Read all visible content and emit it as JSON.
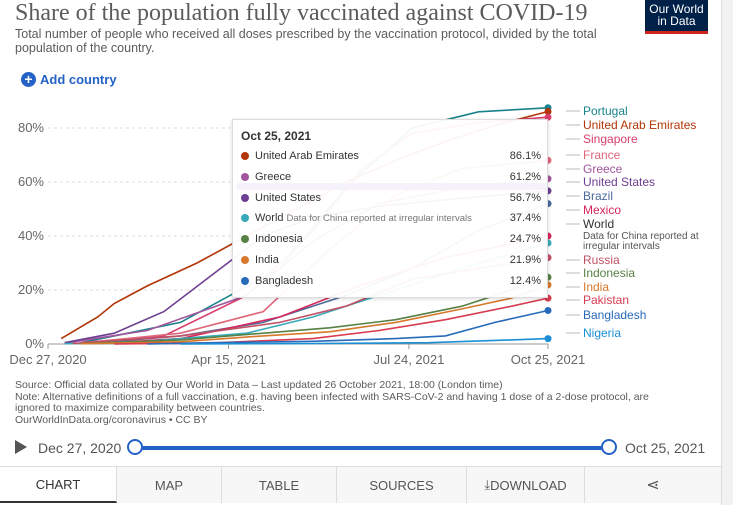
{
  "header": {
    "title": "Share of the population fully vaccinated against COVID-19",
    "subtitle": "Total number of people who received all doses prescribed by the vaccination protocol, divided by the total population of the country.",
    "logo_line1": "Our World",
    "logo_line2": "in Data"
  },
  "add_country": {
    "icon": "plus-icon",
    "label": "Add country"
  },
  "chart_data": {
    "type": "line",
    "title": "Share of the population fully vaccinated against COVID-19",
    "ylabel": "%",
    "ylim": [
      0,
      85
    ],
    "yticks": [
      "0%",
      "20%",
      "40%",
      "60%",
      "80%"
    ],
    "xticks": [
      "Dec 27, 2020",
      "Apr 15, 2021",
      "Jul 24, 2021",
      "Oct 25, 2021"
    ],
    "x_range_days": [
      0,
      302
    ],
    "series": [
      {
        "name": "Portugal",
        "color": "#18838a",
        "points": [
          [
            20,
            0.5
          ],
          [
            80,
            8
          ],
          [
            140,
            28
          ],
          [
            180,
            58
          ],
          [
            220,
            80
          ],
          [
            260,
            86
          ],
          [
            302,
            87.5
          ]
        ]
      },
      {
        "name": "United Arab Emirates",
        "color": "#b13507",
        "points": [
          [
            8,
            2
          ],
          [
            30,
            10
          ],
          [
            40,
            15
          ],
          [
            60,
            21.5
          ],
          [
            90,
            30
          ],
          [
            120,
            40
          ],
          [
            150,
            50
          ],
          [
            180,
            60
          ],
          [
            210,
            68
          ],
          [
            240,
            75
          ],
          [
            270,
            81
          ],
          [
            302,
            86.1
          ]
        ]
      },
      {
        "name": "Singapore",
        "color": "#d83e6c",
        "points": [
          [
            20,
            0.5
          ],
          [
            70,
            3
          ],
          [
            120,
            18
          ],
          [
            160,
            42
          ],
          [
            190,
            65
          ],
          [
            220,
            78
          ],
          [
            260,
            82
          ],
          [
            302,
            84
          ]
        ]
      },
      {
        "name": "France",
        "color": "#e0677a",
        "points": [
          [
            20,
            0.3
          ],
          [
            80,
            4
          ],
          [
            130,
            12
          ],
          [
            170,
            35
          ],
          [
            210,
            55
          ],
          [
            250,
            65
          ],
          [
            302,
            68
          ]
        ]
      },
      {
        "name": "Greece",
        "color": "#a2559c",
        "points": [
          [
            10,
            0.3
          ],
          [
            60,
            5
          ],
          [
            120,
            18
          ],
          [
            160,
            38
          ],
          [
            200,
            52
          ],
          [
            250,
            58
          ],
          [
            302,
            61.2
          ]
        ]
      },
      {
        "name": "United States",
        "color": "#6d3e91",
        "points": [
          [
            10,
            0.5
          ],
          [
            40,
            4
          ],
          [
            70,
            12
          ],
          [
            100,
            26
          ],
          [
            130,
            40
          ],
          [
            160,
            47
          ],
          [
            200,
            51
          ],
          [
            250,
            54
          ],
          [
            302,
            56.7
          ]
        ]
      },
      {
        "name": "Brazil",
        "color": "#4c6a9c",
        "points": [
          [
            25,
            0.2
          ],
          [
            80,
            3
          ],
          [
            130,
            8
          ],
          [
            180,
            18
          ],
          [
            220,
            28
          ],
          [
            260,
            42
          ],
          [
            302,
            52
          ]
        ]
      },
      {
        "name": "Mexico",
        "color": "#d7265a",
        "points": [
          [
            30,
            0.2
          ],
          [
            80,
            2
          ],
          [
            140,
            10
          ],
          [
            190,
            22
          ],
          [
            240,
            32
          ],
          [
            302,
            40
          ]
        ]
      },
      {
        "name": "World",
        "color": "#38aaba",
        "points": [
          [
            10,
            0.1
          ],
          [
            60,
            1
          ],
          [
            120,
            4
          ],
          [
            160,
            10
          ],
          [
            200,
            18
          ],
          [
            250,
            28
          ],
          [
            302,
            37.4
          ]
        ]
      },
      {
        "name": "Russia",
        "color": "#c15065",
        "points": [
          [
            15,
            0.2
          ],
          [
            80,
            3
          ],
          [
            140,
            8
          ],
          [
            180,
            14
          ],
          [
            220,
            24
          ],
          [
            260,
            28
          ],
          [
            302,
            32
          ]
        ]
      },
      {
        "name": "Indonesia",
        "color": "#578145",
        "points": [
          [
            20,
            0.1
          ],
          [
            80,
            1.5
          ],
          [
            130,
            4
          ],
          [
            170,
            6
          ],
          [
            210,
            9
          ],
          [
            250,
            14
          ],
          [
            280,
            20
          ],
          [
            302,
            24.7
          ]
        ]
      },
      {
        "name": "India",
        "color": "#d7782b",
        "points": [
          [
            20,
            0.1
          ],
          [
            80,
            0.8
          ],
          [
            130,
            3
          ],
          [
            170,
            4.5
          ],
          [
            210,
            8
          ],
          [
            250,
            13
          ],
          [
            280,
            17
          ],
          [
            302,
            21.9
          ]
        ]
      },
      {
        "name": "Pakistan",
        "color": "#d73c50",
        "points": [
          [
            40,
            0
          ],
          [
            100,
            0.4
          ],
          [
            160,
            2
          ],
          [
            200,
            5
          ],
          [
            240,
            9
          ],
          [
            280,
            14
          ],
          [
            302,
            17
          ]
        ]
      },
      {
        "name": "Bangladesh",
        "color": "#286bbb",
        "points": [
          [
            60,
            0
          ],
          [
            100,
            0.5
          ],
          [
            160,
            1
          ],
          [
            210,
            2
          ],
          [
            240,
            3
          ],
          [
            270,
            8
          ],
          [
            302,
            12.4
          ]
        ]
      },
      {
        "name": "Nigeria",
        "color": "#1a8fd6",
        "points": [
          [
            80,
            0
          ],
          [
            160,
            0.2
          ],
          [
            230,
            0.5
          ],
          [
            280,
            1.5
          ],
          [
            302,
            2
          ]
        ]
      }
    ]
  },
  "tooltip": {
    "date": "Oct 25, 2021",
    "note": "Data for China reported at irregular intervals",
    "rows": [
      {
        "country": "United Arab Emirates",
        "value": "86.1%",
        "color": "#b13507"
      },
      {
        "country": "Greece",
        "value": "61.2%",
        "color": "#a2559c"
      },
      {
        "country": "United States",
        "value": "56.7%",
        "color": "#6d3e91"
      },
      {
        "country": "World",
        "value": "37.4%",
        "color": "#38aaba"
      },
      {
        "country": "Indonesia",
        "value": "24.7%",
        "color": "#578145"
      },
      {
        "country": "India",
        "value": "21.9%",
        "color": "#d7782b"
      },
      {
        "country": "Bangladesh",
        "value": "12.4%",
        "color": "#286bbb"
      }
    ]
  },
  "legend": [
    {
      "label": "Portugal",
      "color": "#18838a"
    },
    {
      "label": "United Arab Emirates",
      "color": "#b13507"
    },
    {
      "label": "Singapore",
      "color": "#d83e6c"
    },
    {
      "label": "France",
      "color": "#e0677a"
    },
    {
      "label": "Greece",
      "color": "#a2559c"
    },
    {
      "label": "United States",
      "color": "#6d3e91"
    },
    {
      "label": "Brazil",
      "color": "#4c6a9c"
    },
    {
      "label": "Mexico",
      "color": "#d7265a"
    },
    {
      "label": "World",
      "color": "#333333"
    },
    {
      "label": "Data for China reported at",
      "color": "#555555",
      "note": true
    },
    {
      "label": "irregular intervals",
      "color": "#555555",
      "note": true
    },
    {
      "label": "Russia",
      "color": "#c15065"
    },
    {
      "label": "Indonesia",
      "color": "#578145"
    },
    {
      "label": "India",
      "color": "#d7782b"
    },
    {
      "label": "Pakistan",
      "color": "#d73c50"
    },
    {
      "label": "Bangladesh",
      "color": "#286bbb"
    },
    {
      "label": "Nigeria",
      "color": "#1a8fd6"
    }
  ],
  "source": {
    "line1": "Source: Official data collated by Our World in Data – Last updated 26 October 2021, 18:00 (London time)",
    "line2": "Note: Alternative definitions of a full vaccination, e.g. having been infected with SARS-CoV-2 and having 1 dose of a 2-dose protocol, are ignored to maximize comparability between countries.",
    "line3": "OurWorldInData.org/coronavirus • CC BY"
  },
  "timeline": {
    "start": "Dec 27, 2020",
    "end": "Oct 25, 2021"
  },
  "tabs": [
    {
      "label": "CHART",
      "icon": ""
    },
    {
      "label": "MAP",
      "icon": ""
    },
    {
      "label": "TABLE",
      "icon": ""
    },
    {
      "label": "SOURCES",
      "icon": ""
    },
    {
      "label": "DOWNLOAD",
      "icon": "download-icon"
    },
    {
      "label": "",
      "icon": "share-icon"
    }
  ],
  "colors": {
    "accent": "#2462c8",
    "highlight": "#3f0fbf"
  }
}
